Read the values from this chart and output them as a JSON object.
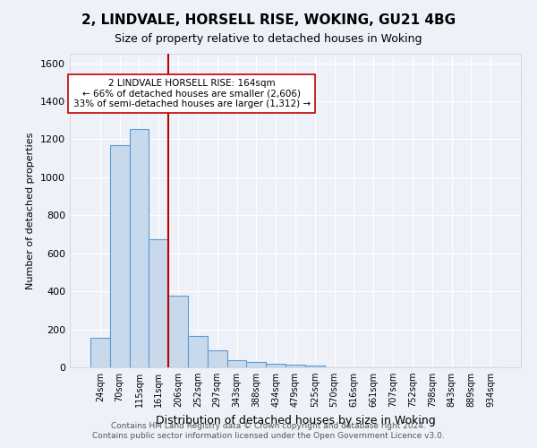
{
  "title": "2, LINDVALE, HORSELL RISE, WOKING, GU21 4BG",
  "subtitle": "Size of property relative to detached houses in Woking",
  "xlabel": "Distribution of detached houses by size in Woking",
  "ylabel": "Number of detached properties",
  "categories": [
    "24sqm",
    "70sqm",
    "115sqm",
    "161sqm",
    "206sqm",
    "252sqm",
    "297sqm",
    "343sqm",
    "388sqm",
    "434sqm",
    "479sqm",
    "525sqm",
    "570sqm",
    "616sqm",
    "661sqm",
    "707sqm",
    "752sqm",
    "798sqm",
    "843sqm",
    "889sqm",
    "934sqm"
  ],
  "values": [
    155,
    1170,
    1255,
    675,
    375,
    165,
    88,
    38,
    28,
    18,
    13,
    10,
    0,
    0,
    0,
    0,
    0,
    0,
    0,
    0,
    0
  ],
  "bar_color": "#c9d9ec",
  "bar_edge_color": "#5b9bd5",
  "vline_x": 3.5,
  "vline_color": "#c00000",
  "annotation_text": "2 LINDVALE HORSELL RISE: 164sqm\n← 66% of detached houses are smaller (2,606)\n33% of semi-detached houses are larger (1,312) →",
  "annotation_box_color": "white",
  "annotation_box_edge": "#c00000",
  "background_color": "#eef2f8",
  "grid_color": "white",
  "ylim": [
    0,
    1650
  ],
  "yticks": [
    0,
    200,
    400,
    600,
    800,
    1000,
    1200,
    1400,
    1600
  ],
  "footer1": "Contains HM Land Registry data © Crown copyright and database right 2024.",
  "footer2": "Contains public sector information licensed under the Open Government Licence v3.0."
}
